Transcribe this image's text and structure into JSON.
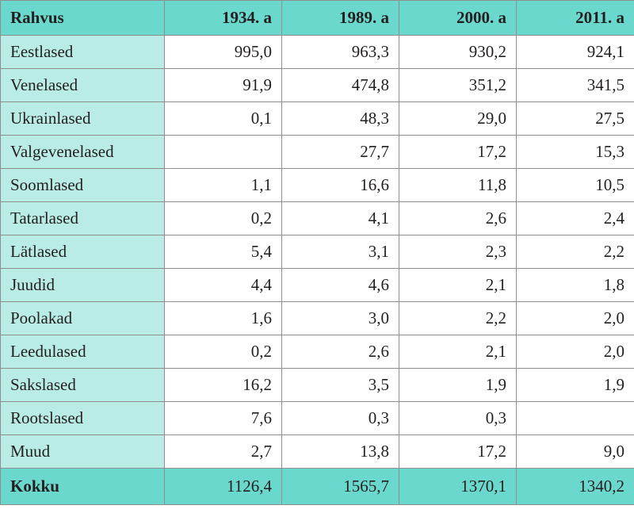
{
  "table": {
    "headers": [
      "Rahvus",
      "1934. a",
      "1989. a",
      "2000. a",
      "2011. a"
    ],
    "rows": [
      {
        "label": "Eestlased",
        "values": [
          "995,0",
          "963,3",
          "930,2",
          "924,1"
        ]
      },
      {
        "label": "Venelased",
        "values": [
          "91,9",
          "474,8",
          "351,2",
          "341,5"
        ]
      },
      {
        "label": "Ukrainlased",
        "values": [
          "0,1",
          "48,3",
          "29,0",
          "27,5"
        ]
      },
      {
        "label": "Valgevenelased",
        "values": [
          "",
          "27,7",
          "17,2",
          "15,3"
        ]
      },
      {
        "label": "Soomlased",
        "values": [
          "1,1",
          "16,6",
          "11,8",
          "10,5"
        ]
      },
      {
        "label": "Tatarlased",
        "values": [
          "0,2",
          "4,1",
          "2,6",
          "2,4"
        ]
      },
      {
        "label": "Lätlased",
        "values": [
          "5,4",
          "3,1",
          "2,3",
          "2,2"
        ]
      },
      {
        "label": "Juudid",
        "values": [
          "4,4",
          "4,6",
          "2,1",
          "1,8"
        ]
      },
      {
        "label": "Poolakad",
        "values": [
          "1,6",
          "3,0",
          "2,2",
          "2,0"
        ]
      },
      {
        "label": "Leedulased",
        "values": [
          "0,2",
          "2,6",
          "2,1",
          "2,0"
        ]
      },
      {
        "label": "Sakslased",
        "values": [
          "16,2",
          "3,5",
          "1,9",
          "1,9"
        ]
      },
      {
        "label": "Rootslased",
        "values": [
          "7,6",
          "0,3",
          "0,3",
          ""
        ]
      },
      {
        "label": "Muud",
        "values": [
          "2,7",
          "13,8",
          "17,2",
          "9,0"
        ]
      }
    ],
    "total": {
      "label": "Kokku",
      "values": [
        "1126,4",
        "1565,7",
        "1370,1",
        "1340,2"
      ]
    }
  },
  "colors": {
    "header_bg": "#6bd8cd",
    "label_bg": "#b9ece5",
    "border": "#8e8e8e"
  }
}
